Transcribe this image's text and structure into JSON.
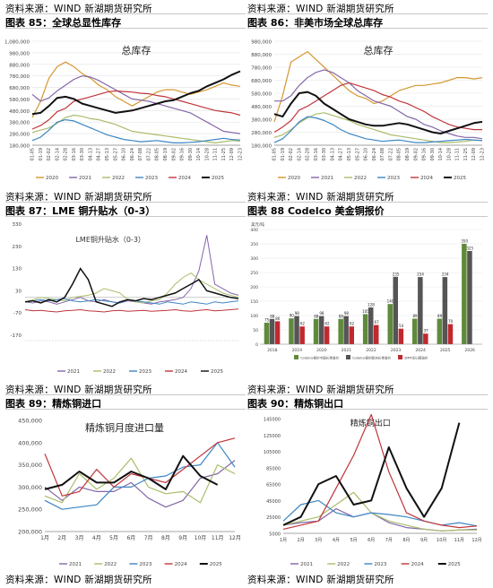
{
  "source_note": "资料来源：WIND 新湖期货研究所",
  "panels": [
    {
      "fig_title": "图表 85：全球总显性库存"
    },
    {
      "fig_title": "图表 86：非美市场全球总库存"
    },
    {
      "fig_title": "图表 87：LME 铜升贴水（0-3）"
    },
    {
      "fig_title": "图表 88 Codelco 美金铜报价"
    },
    {
      "fig_title": "图表 89：精炼铜进口"
    },
    {
      "fig_title": "图表 90：精炼铜出口"
    }
  ],
  "year_colors": {
    "2020": "#d4972f",
    "2021": "#8466a8",
    "2022": "#a9bd6b",
    "2023": "#3d86c4",
    "2024": "#c0353b",
    "2025": "#111111"
  },
  "chart_data": [
    {
      "type": "line",
      "title": "总库存",
      "ylim": [
        180000,
        1080000
      ],
      "yticks": [
        "180,000",
        "280,000",
        "380,000",
        "480,000",
        "580,000",
        "680,000",
        "780,000",
        "880,000",
        "980,000",
        "1,080,000"
      ],
      "x_labels": [
        "01-05",
        "01-19",
        "02-02",
        "02-14",
        "02-28",
        "03-16",
        "03-30",
        "04-13",
        "04-27",
        "05-13",
        "05-27",
        "06-10",
        "06-24",
        "07-08",
        "07-22",
        "08-05",
        "08-19",
        "09-02",
        "09-16",
        "09-30",
        "10-14",
        "10-28",
        "11-11",
        "11-25",
        "12-09",
        "12-23"
      ],
      "legend": [
        "2020",
        "2021",
        "2022",
        "2023",
        "2024",
        "2025"
      ],
      "series": [
        {
          "name": "2020",
          "values": [
            420000,
            560000,
            760000,
            860000,
            900000,
            860000,
            800000,
            760000,
            700000,
            660000,
            600000,
            560000,
            520000,
            560000,
            600000,
            640000,
            660000,
            660000,
            640000,
            620000,
            640000,
            660000,
            690000,
            720000,
            700000,
            690000
          ]
        },
        {
          "name": "2021",
          "values": [
            620000,
            560000,
            590000,
            650000,
            700000,
            750000,
            780000,
            770000,
            740000,
            700000,
            660000,
            620000,
            580000,
            570000,
            560000,
            540000,
            520000,
            500000,
            480000,
            460000,
            420000,
            380000,
            340000,
            300000,
            290000,
            280000
          ]
        },
        {
          "name": "2022",
          "values": [
            290000,
            310000,
            330000,
            370000,
            420000,
            440000,
            430000,
            410000,
            400000,
            380000,
            360000,
            330000,
            300000,
            290000,
            280000,
            270000,
            260000,
            250000,
            240000,
            230000,
            220000,
            210000,
            200000,
            210000,
            220000,
            215000
          ]
        },
        {
          "name": "2023",
          "values": [
            220000,
            250000,
            310000,
            380000,
            400000,
            390000,
            360000,
            330000,
            300000,
            270000,
            250000,
            230000,
            220000,
            210000,
            215000,
            220000,
            210000,
            200000,
            200000,
            205000,
            210000,
            220000,
            230000,
            240000,
            230000,
            225000
          ]
        },
        {
          "name": "2024",
          "values": [
            320000,
            350000,
            400000,
            470000,
            500000,
            560000,
            580000,
            600000,
            620000,
            640000,
            650000,
            645000,
            640000,
            630000,
            625000,
            610000,
            600000,
            580000,
            560000,
            540000,
            520000,
            500000,
            480000,
            470000,
            460000,
            440000
          ]
        },
        {
          "name": "2025",
          "values": [
            450000,
            460000,
            520000,
            590000,
            600000,
            580000,
            540000,
            520000,
            500000,
            480000,
            460000,
            470000,
            480000,
            500000,
            520000,
            540000,
            560000,
            570000,
            600000,
            630000,
            650000,
            690000,
            720000,
            750000,
            790000,
            820000
          ]
        }
      ]
    },
    {
      "type": "line",
      "title": "总库存",
      "ylim": [
        180000,
        980000
      ],
      "yticks": [
        "180,000",
        "280,000",
        "380,000",
        "480,000",
        "580,000",
        "680,000",
        "780,000",
        "880,000",
        "980,000"
      ],
      "x_labels": [
        "01-05",
        "01-19",
        "02-02",
        "02-14",
        "02-28",
        "03-16",
        "03-30",
        "04-13",
        "04-27",
        "05-13",
        "05-27",
        "06-10",
        "06-24",
        "07-08",
        "07-22",
        "08-05",
        "08-19",
        "09-02",
        "09-16",
        "09-30",
        "10-14",
        "10-28",
        "11-11",
        "11-25",
        "12-09",
        "12-23"
      ],
      "legend": [
        "2020",
        "2021",
        "2022",
        "2023",
        "2024",
        "2025"
      ],
      "series": [
        {
          "name": "2020",
          "values": [
            360000,
            560000,
            820000,
            860000,
            900000,
            840000,
            780000,
            720000,
            660000,
            600000,
            560000,
            540000,
            500000,
            520000,
            560000,
            600000,
            620000,
            640000,
            640000,
            650000,
            660000,
            680000,
            700000,
            700000,
            690000,
            700000
          ]
        },
        {
          "name": "2021",
          "values": [
            520000,
            520000,
            560000,
            640000,
            700000,
            740000,
            760000,
            740000,
            700000,
            660000,
            600000,
            560000,
            520000,
            500000,
            480000,
            440000,
            400000,
            380000,
            340000,
            320000,
            290000,
            270000,
            250000,
            240000,
            240000,
            230000
          ]
        },
        {
          "name": "2022",
          "values": [
            240000,
            260000,
            300000,
            350000,
            390000,
            420000,
            430000,
            410000,
            390000,
            370000,
            340000,
            320000,
            300000,
            280000,
            260000,
            250000,
            240000,
            230000,
            220000,
            210000,
            200000,
            200000,
            205000,
            210000,
            220000,
            215000
          ]
        },
        {
          "name": "2023",
          "values": [
            200000,
            230000,
            290000,
            360000,
            400000,
            390000,
            370000,
            340000,
            300000,
            270000,
            250000,
            230000,
            220000,
            210000,
            215000,
            220000,
            210000,
            200000,
            200000,
            205000,
            210000,
            215000,
            220000,
            225000,
            220000,
            215000
          ]
        },
        {
          "name": "2024",
          "values": [
            280000,
            320000,
            370000,
            450000,
            480000,
            520000,
            560000,
            600000,
            640000,
            660000,
            640000,
            620000,
            600000,
            570000,
            550000,
            520000,
            500000,
            470000,
            440000,
            400000,
            370000,
            340000,
            320000,
            310000,
            300000,
            300000
          ]
        },
        {
          "name": "2025",
          "values": [
            420000,
            400000,
            500000,
            580000,
            590000,
            560000,
            500000,
            460000,
            420000,
            380000,
            360000,
            340000,
            330000,
            330000,
            340000,
            350000,
            340000,
            320000,
            300000,
            280000,
            270000,
            290000,
            310000,
            330000,
            350000,
            360000
          ]
        }
      ]
    },
    {
      "type": "line",
      "title": "LME铜升贴水（0-3）",
      "ylim": [
        -170,
        330
      ],
      "yticks": [
        "-170",
        "-70",
        "30",
        "130",
        "230",
        "330"
      ],
      "tick_label_extra": "-70",
      "legend": [
        "2021",
        "2022",
        "2023",
        "2024",
        "2025"
      ],
      "series": [
        {
          "name": "2021",
          "values": [
            -20,
            -25,
            -15,
            -20,
            -30,
            -20,
            -10,
            0,
            -15,
            -20,
            -10,
            -20,
            -25,
            -15,
            -20,
            -25,
            -30,
            -20,
            -15,
            -10,
            0,
            40,
            120,
            280,
            60,
            40,
            20,
            10
          ]
        },
        {
          "name": "2022",
          "values": [
            -20,
            -10,
            0,
            -5,
            -10,
            -15,
            0,
            5,
            10,
            20,
            40,
            30,
            20,
            -10,
            -20,
            -25,
            -15,
            -10,
            20,
            60,
            90,
            110,
            80,
            60,
            40,
            20,
            10,
            0
          ]
        },
        {
          "name": "2023",
          "values": [
            -20,
            -15,
            -10,
            -15,
            -10,
            -5,
            -15,
            -20,
            -15,
            -10,
            -15,
            -20,
            -25,
            -10,
            -15,
            -20,
            -25,
            -30,
            -20,
            -25,
            -30,
            -20,
            -25,
            -30,
            -20,
            -25,
            -20,
            -15
          ]
        },
        {
          "name": "2024",
          "values": [
            -55,
            -60,
            -58,
            -62,
            -65,
            -60,
            -58,
            -55,
            -60,
            -62,
            -65,
            -60,
            -58,
            -62,
            -60,
            -58,
            -62,
            -60,
            -58,
            -55,
            -60,
            -62,
            -58,
            -55,
            -60,
            -58,
            -55,
            -52
          ]
        },
        {
          "name": "2025",
          "values": [
            -20,
            -15,
            -25,
            -10,
            -20,
            0,
            60,
            130,
            80,
            -20,
            -30,
            -40,
            -20,
            -10,
            -15,
            -5,
            -10,
            0,
            10,
            20,
            40,
            60,
            80,
            30,
            20,
            10,
            0,
            -5
          ]
        }
      ]
    },
    {
      "type": "bar",
      "ylabel": "美元/吨",
      "ylim": [
        0,
        400
      ],
      "yticks": [
        "0",
        "50",
        "100",
        "150",
        "200",
        "250",
        "300",
        "350",
        "400"
      ],
      "categories": [
        "2018",
        "2019",
        "2020",
        "2021",
        "2022",
        "2023",
        "2024",
        "2025",
        "2026"
      ],
      "legend": [
        "Codelco报价中国长单溢价",
        "Codelco报价欧洲长单溢价",
        "SMM洋山铜溢价"
      ],
      "series": [
        {
          "name": "Codelco报价中国长单溢价",
          "values": [
            75,
            90,
            88,
            88,
            105,
            140,
            89,
            89,
            350
          ]
        },
        {
          "name": "Codelco报价欧洲长单溢价",
          "values": [
            88,
            98,
            98,
            98,
            128,
            235,
            234,
            234,
            325
          ]
        },
        {
          "name": "SMM洋山铜溢价",
          "values": [
            80,
            62,
            62,
            62,
            67,
            54,
            37,
            70,
            null
          ]
        }
      ]
    },
    {
      "type": "line",
      "title": "精炼铜月度进口量",
      "ylim": [
        200000,
        450000
      ],
      "yticks": [
        "200,000",
        "250,000",
        "300,000",
        "350,000",
        "400,000",
        "450,000"
      ],
      "categories": [
        "1月",
        "2月",
        "3月",
        "4月",
        "5月",
        "6月",
        "7月",
        "8月",
        "9月",
        "10月",
        "11月",
        "12月"
      ],
      "legend": [
        "2021",
        "2022",
        "2023",
        "2024",
        "2025"
      ],
      "series": [
        {
          "name": "2021",
          "values": [
            300000,
            270000,
            300000,
            290000,
            290000,
            310000,
            275000,
            255000,
            270000,
            320000,
            330000,
            360000
          ]
        },
        {
          "name": "2022",
          "values": [
            280000,
            265000,
            330000,
            295000,
            320000,
            365000,
            300000,
            285000,
            290000,
            265000,
            350000,
            330000
          ]
        },
        {
          "name": "2023",
          "values": [
            270000,
            250000,
            255000,
            260000,
            300000,
            300000,
            320000,
            325000,
            345000,
            350000,
            400000,
            345000
          ]
        },
        {
          "name": "2024",
          "values": [
            375000,
            280000,
            290000,
            340000,
            300000,
            330000,
            320000,
            310000,
            340000,
            370000,
            400000,
            410000
          ]
        },
        {
          "name": "2025",
          "values": [
            295000,
            305000,
            335000,
            310000,
            310000,
            335000,
            320000,
            295000,
            370000,
            325000,
            305000,
            null
          ]
        }
      ]
    },
    {
      "type": "line",
      "title": "精炼铜出口",
      "ylim": [
        5000,
        145000
      ],
      "yticks": [
        "5000",
        "25000",
        "45000",
        "65000",
        "85000",
        "105000",
        "125000",
        "145000"
      ],
      "categories": [
        "1月",
        "2月",
        "3月",
        "4月",
        "5月",
        "6月",
        "7月",
        "8月",
        "9月",
        "10月",
        "11月",
        "12月"
      ],
      "legend": [
        "2021",
        "2022",
        "2023",
        "2024",
        "2025"
      ],
      "series": [
        {
          "name": "2021",
          "values": [
            15000,
            18000,
            20000,
            35000,
            25000,
            30000,
            18000,
            12000,
            10000,
            8000,
            9000,
            10000
          ]
        },
        {
          "name": "2022",
          "values": [
            15000,
            20000,
            25000,
            40000,
            55000,
            30000,
            20000,
            15000,
            10000,
            8000,
            9000,
            9000
          ]
        },
        {
          "name": "2023",
          "values": [
            20000,
            40000,
            45000,
            30000,
            25000,
            30000,
            28000,
            25000,
            20000,
            15000,
            18000,
            14000
          ]
        },
        {
          "name": "2024",
          "values": [
            10000,
            15000,
            20000,
            60000,
            100000,
            150000,
            80000,
            30000,
            20000,
            15000,
            12000,
            14000
          ]
        },
        {
          "name": "2025",
          "values": [
            15000,
            25000,
            65000,
            75000,
            40000,
            45000,
            110000,
            60000,
            25000,
            60000,
            140000,
            null
          ]
        }
      ]
    }
  ]
}
